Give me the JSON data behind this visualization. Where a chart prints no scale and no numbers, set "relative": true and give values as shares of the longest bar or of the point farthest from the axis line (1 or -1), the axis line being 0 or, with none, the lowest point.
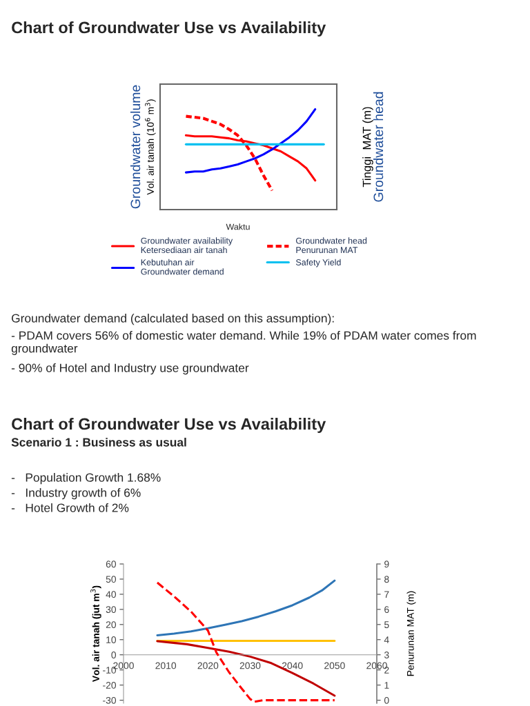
{
  "chart_data": [
    {
      "type": "line",
      "title": "Chart of Groundwater Use vs Availability",
      "xlabel": "Waktu",
      "ylabel": "Groundwater volume\nVol. air tanah (10$^{6}$ m$^{3}$)",
      "y2label": "Tinggi  MAT (m)\nGroundwater head",
      "relative": true,
      "legend": "bottom",
      "grid": false,
      "categories": [
        null,
        null,
        null,
        null,
        null,
        null,
        null,
        null,
        null,
        null,
        null,
        null,
        null,
        null,
        null,
        null,
        null
      ],
      "series": [
        {
          "name": "Groundwater availability\nKetersediaan air tanah",
          "color": "#ff0000",
          "line_style": "solid",
          "values": [
            0.74,
            0.73,
            0.73,
            0.73,
            0.72,
            0.71,
            0.69,
            0.68,
            0.66,
            0.64,
            0.61,
            0.58,
            0.53,
            0.48,
            0.41,
            0.29,
            null
          ]
        },
        {
          "name": "Groundwater head\nPenurunan MAT",
          "color": "#ff0000",
          "line_style": "dashed",
          "values": [
            0.93,
            0.92,
            0.91,
            0.88,
            0.85,
            0.8,
            0.74,
            0.64,
            0.51,
            0.34,
            0.19,
            null,
            null,
            null,
            null,
            null,
            null
          ]
        },
        {
          "name": "Kebutuhan air\nGroundwater demand",
          "color": "#0000ff",
          "line_style": "solid",
          "values": [
            0.37,
            0.38,
            0.38,
            0.4,
            0.41,
            0.43,
            0.45,
            0.48,
            0.51,
            0.55,
            0.6,
            0.66,
            0.72,
            0.79,
            0.88,
            1,
            null
          ]
        },
        {
          "name": "Safety Yield",
          "color": "#00c0f0",
          "line_style": "solid",
          "values": [
            0.65,
            0.65,
            0.65,
            0.65,
            0.65,
            0.65,
            0.65,
            0.65,
            0.65,
            0.65,
            0.65,
            0.65,
            0.65,
            0.65,
            0.65,
            0.65,
            0.65
          ]
        }
      ],
      "annotations": [
        "Groundwater demand (calculated based on this assumption):",
        "- PDAM covers 56% of domestic water demand. While 19% of PDAM water comes from groundwater",
        "- 90% of Hotel and Industry use groundwater"
      ]
    },
    {
      "type": "line",
      "title": "Chart of Groundwater Use vs Availability",
      "subtitle": "Scenario 1 : Business as usual",
      "ylabel": "Vol. air tanah (jut m$^{3}$)",
      "y2label": "Penurunan MAT (m)",
      "grid": false,
      "xlim": [
        2000,
        2060
      ],
      "xticks": [
        2000,
        2010,
        2020,
        2030,
        2040,
        2050,
        2060
      ],
      "ylim": [
        -32,
        60
      ],
      "yticks": [
        -30,
        -20,
        -10,
        0,
        10,
        20,
        30,
        40,
        50,
        60
      ],
      "y2lim": [
        -0.2,
        9
      ],
      "y2ticks": [
        0,
        1,
        2,
        3,
        4,
        5,
        6,
        7,
        8,
        9
      ],
      "series": [
        {
          "color": "#2e75b6",
          "line_style": "solid",
          "x": [
            2008,
            2012,
            2016,
            2020,
            2024,
            2028,
            2032,
            2036,
            2040,
            2044,
            2047,
            2050
          ],
          "values": [
            12.9,
            14,
            15.5,
            17.5,
            19.8,
            22.2,
            25.2,
            28.7,
            32.7,
            37.8,
            42.5,
            49
          ]
        },
        {
          "color": "#ffc000",
          "line_style": "solid",
          "x": [
            2008,
            2050
          ],
          "values": [
            9.2,
            9.2
          ]
        },
        {
          "color": "#c00000",
          "line_style": "solid",
          "x": [
            2008,
            2015,
            2020,
            2025,
            2030,
            2035,
            2040,
            2045,
            2050
          ],
          "values": [
            9,
            7,
            4.6,
            2,
            -1.2,
            -5.5,
            -12,
            -19,
            -27
          ]
        },
        {
          "color": "#ff0000",
          "line_style": "dashed",
          "axis": "y2",
          "x": [
            2008,
            2012,
            2016,
            2020,
            2022,
            2025,
            2028,
            2030,
            2031,
            2033,
            2050
          ],
          "values": [
            7.77,
            6.85,
            5.85,
            4.6,
            3.15,
            1.85,
            0.77,
            0.08,
            -0.1,
            0,
            0
          ]
        }
      ],
      "annotations": [
        "-   Population Growth 1.68%",
        "-   Industry growth of 6%",
        "-   Hotel Growth of 2%"
      ]
    }
  ]
}
